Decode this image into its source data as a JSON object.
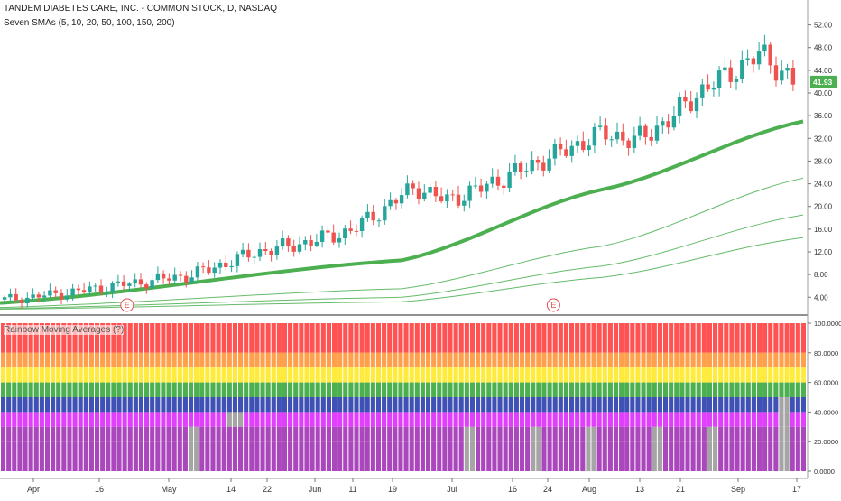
{
  "header": {
    "title": "TANDEM DIABETES CARE, INC. - COMMON STOCK, D, NASDAQ",
    "indicator": "Seven SMAs (5, 10, 20, 50, 100, 150, 200)",
    "lower_indicator": "Rainbow Moving Averages (?)"
  },
  "price_badge": {
    "label": "41.93",
    "value": 41.93,
    "color": "#4caf50"
  },
  "earnings_marker": {
    "label": "E",
    "color": "#e05050"
  },
  "colors": {
    "up": "#26a69a",
    "down": "#ef5350",
    "sma_main": "#4caf50",
    "sma_light": "#66bb6a",
    "rainbow": [
      "#ff5252",
      "#ffa04c",
      "#ffeb3b",
      "#4caf50",
      "#3f51b5",
      "#e040fb",
      "#ab47bc"
    ],
    "fill_gray": "#a5a5a5"
  },
  "chart_data": [
    {
      "type": "candlestick",
      "title": "TANDEM DIABETES CARE, INC. - COMMON STOCK, D, NASDAQ",
      "x_tick_labels": [
        "Apr",
        "16",
        "May",
        "14",
        "22",
        "Jun",
        "11",
        "19",
        "Jul",
        "16",
        "24",
        "Aug",
        "13",
        "21",
        "Sep",
        "17"
      ],
      "y_tick_labels": [
        "4.00",
        "8.00",
        "12.00",
        "16.00",
        "20.00",
        "24.00",
        "28.00",
        "32.00",
        "36.00",
        "40.00",
        "44.00",
        "48.00",
        "52.00"
      ],
      "ylim": [
        1.5,
        54
      ],
      "y_ticks": [
        4,
        8,
        12,
        16,
        20,
        24,
        28,
        32,
        36,
        40,
        44,
        48,
        52
      ],
      "earnings_events": [
        [
          "2018-04-23",
          1.6
        ],
        [
          "2018-07-26",
          1.6
        ]
      ],
      "last_price": 41.93,
      "ohlc_close_estimates": [
        [
          "2018-03-26",
          3.6
        ],
        [
          "2018-04-02",
          4.1
        ],
        [
          "2018-04-09",
          4.8
        ],
        [
          "2018-04-16",
          5.6
        ],
        [
          "2018-04-23",
          6.4
        ],
        [
          "2018-04-30",
          7.2
        ],
        [
          "2018-05-07",
          8.0
        ],
        [
          "2018-05-14",
          10.0
        ],
        [
          "2018-05-21",
          12.0
        ],
        [
          "2018-05-28",
          13.0
        ],
        [
          "2018-06-04",
          14.2
        ],
        [
          "2018-06-11",
          15.8
        ],
        [
          "2018-06-18",
          19.5
        ],
        [
          "2018-06-25",
          23.5
        ],
        [
          "2018-07-02",
          21.0
        ],
        [
          "2018-07-09",
          23.0
        ],
        [
          "2018-07-16",
          25.5
        ],
        [
          "2018-07-23",
          28.0
        ],
        [
          "2018-07-30",
          30.5
        ],
        [
          "2018-08-06",
          33.0
        ],
        [
          "2018-08-13",
          31.5
        ],
        [
          "2018-08-20",
          35.0
        ],
        [
          "2018-08-27",
          40.0
        ],
        [
          "2018-09-03",
          43.5
        ],
        [
          "2018-09-10",
          47.0
        ],
        [
          "2018-09-17",
          41.93
        ]
      ],
      "series": [
        {
          "name": "SMA 50",
          "values": [
            [
              0,
              3.0
            ],
            [
              0.5,
              10.5
            ],
            [
              0.75,
              23.0
            ],
            [
              1,
              35.0
            ]
          ]
        },
        {
          "name": "SMA 100",
          "values": [
            [
              0,
              2.2
            ],
            [
              0.5,
              5.5
            ],
            [
              0.75,
              13.0
            ],
            [
              1,
              25.0
            ]
          ]
        },
        {
          "name": "SMA 150",
          "values": [
            [
              0,
              2.0
            ],
            [
              0.5,
              4.0
            ],
            [
              0.75,
              9.5
            ],
            [
              1,
              18.5
            ]
          ]
        },
        {
          "name": "SMA 200",
          "values": [
            [
              0,
              1.9
            ],
            [
              0.5,
              3.2
            ],
            [
              0.75,
              7.5
            ],
            [
              1,
              14.5
            ]
          ]
        }
      ]
    },
    {
      "type": "stacked_bar",
      "title": "Rainbow Moving Averages (?)",
      "y_tick_labels": [
        "0.0000",
        "20.0000",
        "40.0000",
        "60.0000",
        "80.0000",
        "100.0000"
      ],
      "ylim": [
        0,
        100
      ],
      "y_ticks": [
        0,
        20,
        40,
        60,
        80,
        100
      ],
      "bands": [
        [
          80,
          100
        ],
        [
          70,
          80
        ],
        [
          60,
          70
        ],
        [
          50,
          60
        ],
        [
          40,
          50
        ],
        [
          30,
          40
        ],
        [
          20,
          30
        ]
      ]
    }
  ]
}
